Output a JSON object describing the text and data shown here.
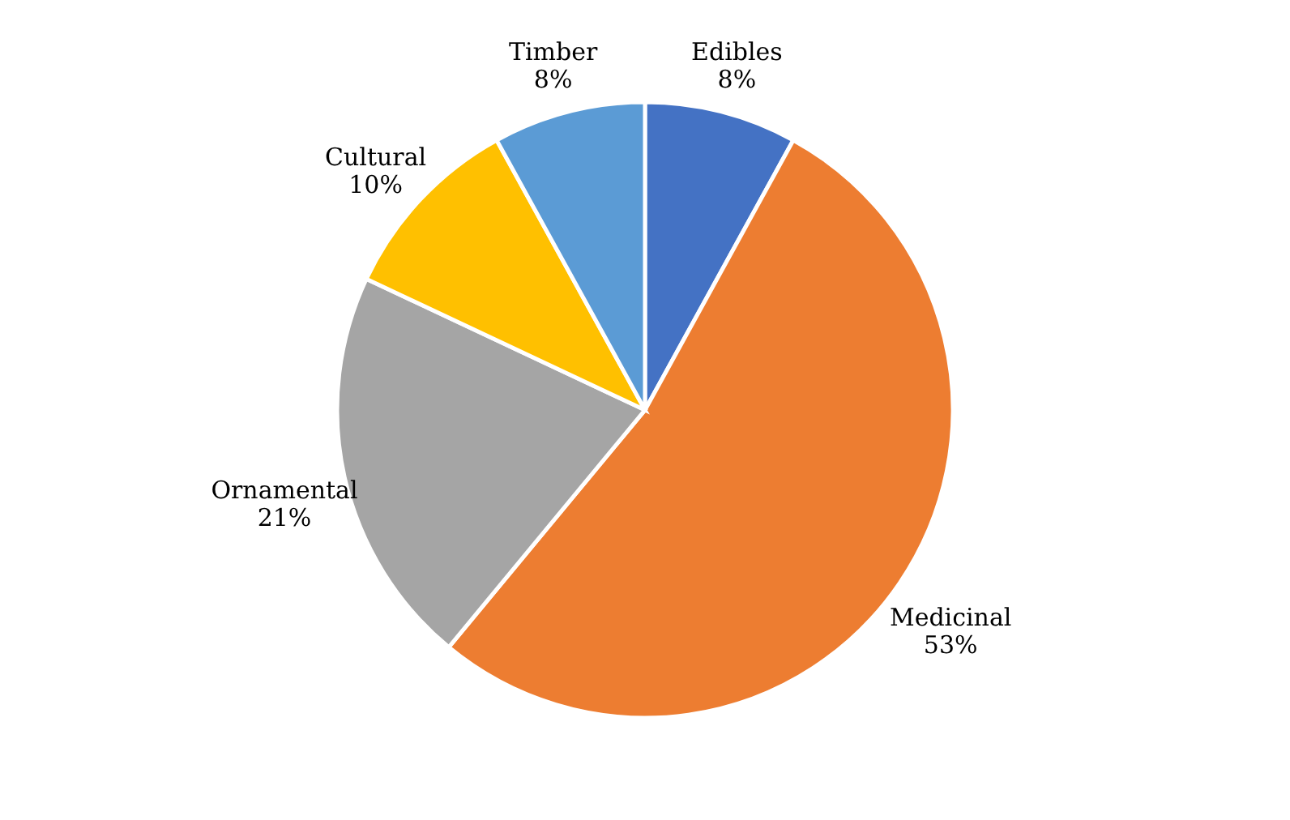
{
  "chart_data": {
    "type": "pie",
    "categories": [
      "Edibles",
      "Medicinal",
      "Ornamental",
      "Cultural",
      "Timber"
    ],
    "values": [
      8,
      53,
      21,
      10,
      8
    ],
    "value_labels": [
      "8%",
      "53%",
      "21%",
      "10%",
      "8%"
    ],
    "colors": [
      "#4472c4",
      "#ed7d31",
      "#a5a5a5",
      "#ffc000",
      "#5b9bd5"
    ]
  }
}
